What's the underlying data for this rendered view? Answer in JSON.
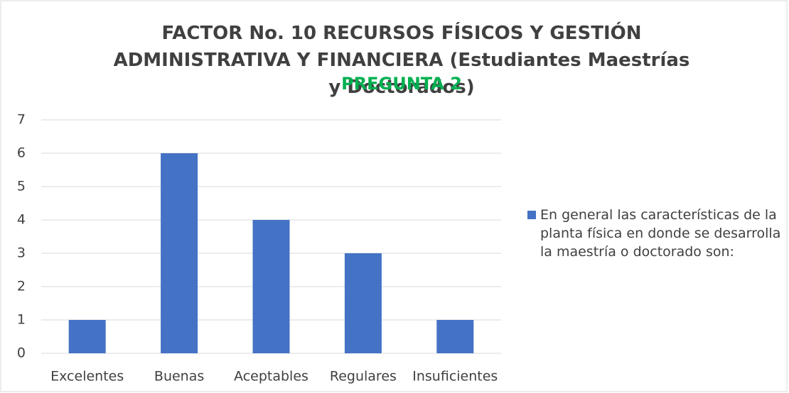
{
  "chart_data": {
    "type": "bar",
    "title": "FACTOR No. 10 RECURSOS FÍSICOS Y GESTIÓN ADMINISTRATIVA Y FINANCIERA (Estudiantes Maestrías y Doctorados)",
    "subtitle": "PREGUNTA 2",
    "categories": [
      "Excelentes",
      "Buenas",
      "Aceptables",
      "Regulares",
      "Insuficientes"
    ],
    "series": [
      {
        "name": "En general las características de la planta física en donde se desarrolla la maestría o doctorado son:",
        "color": "#4472c4",
        "values": [
          1,
          6,
          4,
          3,
          1
        ]
      }
    ],
    "ylim": [
      0,
      7
    ],
    "yticks": [
      0,
      1,
      2,
      3,
      4,
      5,
      6,
      7
    ],
    "grid": true,
    "legend": "right"
  }
}
